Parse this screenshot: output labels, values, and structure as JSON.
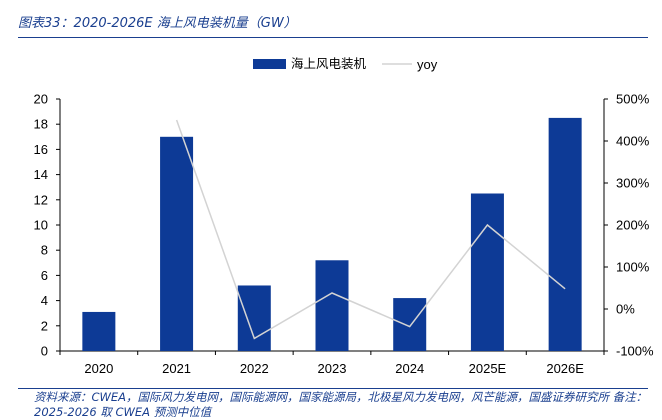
{
  "title": "图表33：2020-2026E 海上风电装机量（GW）",
  "footer": "资料来源：CWEA，国际风力发电网，国际能源网，国家能源局，北极星风力发电网，风芒能源，国盛证券研究所 备注：2025-2026 取 CWEA 预测中位值",
  "colors": {
    "bar": "#0d3a96",
    "line": "#d3d3d3",
    "text": "#1a3f8f"
  },
  "chart_data": {
    "type": "bar",
    "categories": [
      "2020",
      "2021",
      "2022",
      "2023",
      "2024",
      "2025E",
      "2026E"
    ],
    "series": [
      {
        "name": "海上风电装机",
        "type": "bar",
        "axis": "left",
        "values": [
          3.1,
          17.0,
          5.2,
          7.2,
          4.2,
          12.5,
          18.5
        ]
      },
      {
        "name": "yoy",
        "type": "line",
        "axis": "right",
        "values": [
          null,
          450,
          -70,
          38,
          -42,
          200,
          48
        ]
      }
    ],
    "y_left": {
      "lim": [
        0,
        20
      ],
      "ticks": [
        "0",
        "2",
        "4",
        "6",
        "8",
        "10",
        "12",
        "14",
        "16",
        "18",
        "20"
      ]
    },
    "y_right": {
      "lim": [
        -100,
        500
      ],
      "ticks": [
        "-100%",
        "0%",
        "100%",
        "200%",
        "300%",
        "400%",
        "500%"
      ]
    },
    "legend": "top-center"
  }
}
